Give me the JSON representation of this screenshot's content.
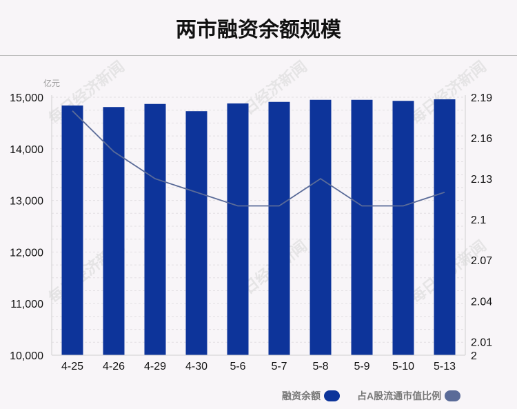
{
  "title": "两市融资余额规模",
  "watermark": "每日经济新闻",
  "chart_data": {
    "type": "bar",
    "title": "两市融资余额规模",
    "y_unit_label": "亿元",
    "categories": [
      "4-25",
      "4-26",
      "4-29",
      "4-30",
      "5-6",
      "5-7",
      "5-8",
      "5-9",
      "5-10",
      "5-13"
    ],
    "series": [
      {
        "name": "融资余额",
        "type": "bar",
        "axis": "left",
        "color": "#0d349a",
        "values": [
          14840,
          14810,
          14870,
          14730,
          14880,
          14910,
          14950,
          14950,
          14930,
          14960
        ]
      },
      {
        "name": "占A股流通市值比例",
        "type": "line",
        "axis": "right",
        "color": "#5a6b98",
        "values": [
          2.18,
          2.15,
          2.13,
          2.12,
          2.11,
          2.11,
          2.13,
          2.11,
          2.11,
          2.12
        ]
      }
    ],
    "y_left": {
      "range": [
        10000,
        15000
      ],
      "ticks": [
        10000,
        11000,
        12000,
        13000,
        14000,
        15000
      ],
      "tick_labels": [
        "10,000",
        "11,000",
        "12,000",
        "13,000",
        "14,000",
        "15,000"
      ]
    },
    "y_right": {
      "range": [
        2.0,
        2.19
      ],
      "ticks": [
        2,
        2.01,
        2.04,
        2.07,
        2.1,
        2.13,
        2.16,
        2.19
      ],
      "tick_labels": [
        "2",
        "2.01",
        "2.04",
        "2.07",
        "2.1",
        "2.13",
        "2.16",
        "2.19"
      ]
    },
    "grid": true,
    "legend_position": "bottom-right"
  },
  "legend": [
    {
      "label": "融资余额",
      "color": "#0d349a"
    },
    {
      "label": "占A股流通市值比例",
      "color": "#5a6b98"
    }
  ]
}
